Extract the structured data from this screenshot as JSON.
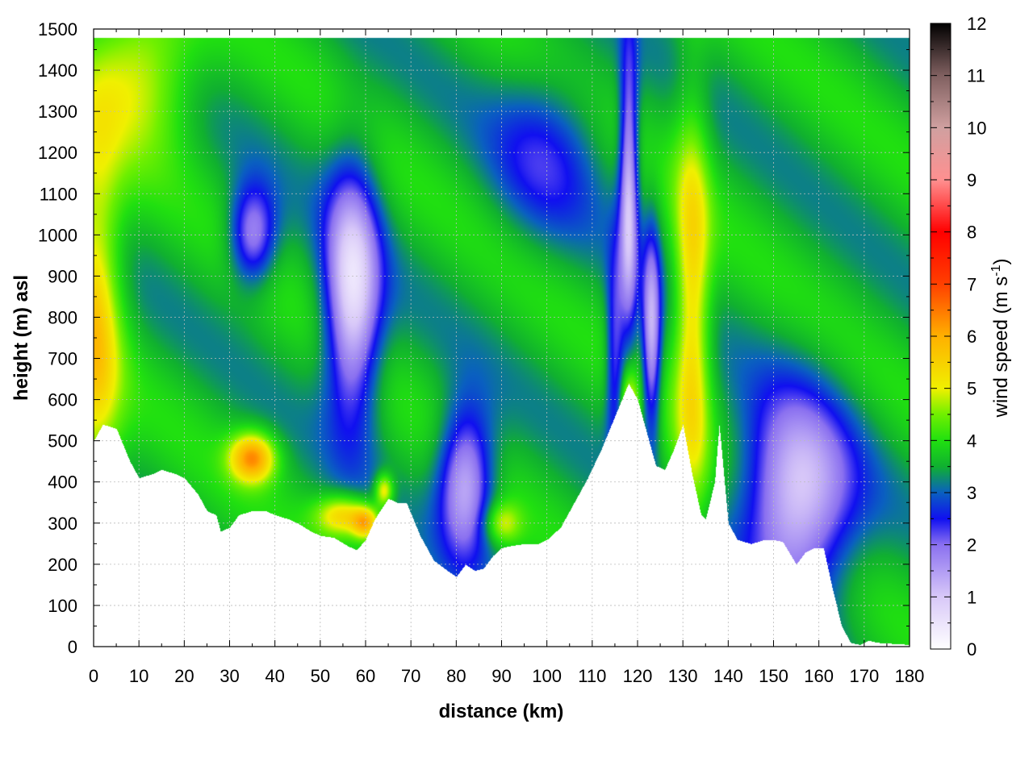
{
  "chart_data": {
    "type": "heatmap",
    "title": "",
    "xlabel": "distance (km)",
    "ylabel": "height (m) asl",
    "colorbar_label": "wind speed (m s",
    "colorbar_label_sup": "-1",
    "colorbar_label_close": ")",
    "xlim": [
      0,
      180
    ],
    "ylim": [
      0,
      1500
    ],
    "clim": [
      0,
      12
    ],
    "x_ticks": [
      0,
      10,
      20,
      30,
      40,
      50,
      60,
      70,
      80,
      90,
      100,
      110,
      120,
      130,
      140,
      150,
      160,
      170,
      180
    ],
    "y_ticks": [
      0,
      100,
      200,
      300,
      400,
      500,
      600,
      700,
      800,
      900,
      1000,
      1100,
      1200,
      1300,
      1400,
      1500
    ],
    "cb_ticks": [
      0,
      1,
      2,
      3,
      4,
      5,
      6,
      7,
      8,
      9,
      10,
      11,
      12
    ],
    "grid": true,
    "colormap": [
      {
        "v": 0.0,
        "color": "#ffffff"
      },
      {
        "v": 1.0,
        "color": "#d8c8f8"
      },
      {
        "v": 2.0,
        "color": "#8a70f0"
      },
      {
        "v": 2.5,
        "color": "#1010f0"
      },
      {
        "v": 3.0,
        "color": "#0a60c0"
      },
      {
        "v": 3.5,
        "color": "#10b030"
      },
      {
        "v": 4.0,
        "color": "#20e010"
      },
      {
        "v": 4.5,
        "color": "#70f000"
      },
      {
        "v": 5.0,
        "color": "#f0f000"
      },
      {
        "v": 6.0,
        "color": "#ffb000"
      },
      {
        "v": 7.0,
        "color": "#ff4000"
      },
      {
        "v": 8.0,
        "color": "#ff0000"
      },
      {
        "v": 9.0,
        "color": "#ff9090"
      },
      {
        "v": 10.0,
        "color": "#d0a0a0"
      },
      {
        "v": 11.0,
        "color": "#806060"
      },
      {
        "v": 12.0,
        "color": "#000000"
      }
    ],
    "terrain_height": [
      [
        0,
        500
      ],
      [
        2,
        540
      ],
      [
        5,
        530
      ],
      [
        8,
        450
      ],
      [
        10,
        410
      ],
      [
        13,
        420
      ],
      [
        15,
        430
      ],
      [
        18,
        420
      ],
      [
        20,
        410
      ],
      [
        23,
        370
      ],
      [
        25,
        330
      ],
      [
        27,
        320
      ],
      [
        28,
        280
      ],
      [
        30,
        290
      ],
      [
        32,
        320
      ],
      [
        35,
        330
      ],
      [
        38,
        330
      ],
      [
        40,
        320
      ],
      [
        43,
        310
      ],
      [
        45,
        300
      ],
      [
        48,
        280
      ],
      [
        50,
        270
      ],
      [
        53,
        265
      ],
      [
        56,
        245
      ],
      [
        58,
        235
      ],
      [
        60,
        260
      ],
      [
        62,
        310
      ],
      [
        65,
        360
      ],
      [
        67,
        350
      ],
      [
        69,
        350
      ],
      [
        72,
        270
      ],
      [
        75,
        210
      ],
      [
        78,
        185
      ],
      [
        80,
        170
      ],
      [
        82,
        200
      ],
      [
        84,
        185
      ],
      [
        86,
        190
      ],
      [
        88,
        220
      ],
      [
        90,
        240
      ],
      [
        92,
        245
      ],
      [
        95,
        250
      ],
      [
        98,
        250
      ],
      [
        100,
        260
      ],
      [
        103,
        290
      ],
      [
        106,
        350
      ],
      [
        109,
        410
      ],
      [
        112,
        480
      ],
      [
        115,
        560
      ],
      [
        118,
        640
      ],
      [
        120,
        600
      ],
      [
        122,
        520
      ],
      [
        124,
        440
      ],
      [
        126,
        430
      ],
      [
        128,
        480
      ],
      [
        130,
        540
      ],
      [
        132,
        420
      ],
      [
        134,
        320
      ],
      [
        135,
        310
      ],
      [
        137,
        400
      ],
      [
        138,
        540
      ],
      [
        140,
        300
      ],
      [
        142,
        260
      ],
      [
        145,
        250
      ],
      [
        148,
        260
      ],
      [
        150,
        260
      ],
      [
        152,
        255
      ],
      [
        155,
        200
      ],
      [
        157,
        230
      ],
      [
        159,
        240
      ],
      [
        161,
        240
      ],
      [
        163,
        140
      ],
      [
        165,
        50
      ],
      [
        167,
        10
      ],
      [
        169,
        5
      ],
      [
        171,
        15
      ],
      [
        173,
        10
      ],
      [
        180,
        5
      ]
    ],
    "wind_features": [
      {
        "x": 0,
        "y": 800,
        "sx": 6,
        "sy": 450,
        "amp": 2.0
      },
      {
        "x": 35,
        "y": 460,
        "sx": 5,
        "sy": 60,
        "amp": 2.6
      },
      {
        "x": 55,
        "y": 320,
        "sx": 6,
        "sy": 50,
        "amp": 1.9
      },
      {
        "x": 60,
        "y": 300,
        "sx": 3,
        "sy": 40,
        "amp": 2.0
      },
      {
        "x": 64,
        "y": 380,
        "sx": 2,
        "sy": 40,
        "amp": 1.8
      },
      {
        "x": 10,
        "y": 1400,
        "sx": 12,
        "sy": 200,
        "amp": 1.5
      },
      {
        "x": 132,
        "y": 800,
        "sx": 4,
        "sy": 500,
        "amp": 1.9
      },
      {
        "x": 118,
        "y": 560,
        "sx": 2,
        "sy": 100,
        "amp": 2.0
      },
      {
        "x": 90,
        "y": 300,
        "sx": 4,
        "sy": 50,
        "amp": 1.2
      },
      {
        "x": 57,
        "y": 850,
        "sx": 6,
        "sy": 300,
        "amp": -3.0
      },
      {
        "x": 35,
        "y": 1000,
        "sx": 5,
        "sy": 120,
        "amp": -2.0
      },
      {
        "x": 82,
        "y": 400,
        "sx": 6,
        "sy": 180,
        "amp": -2.5
      },
      {
        "x": 118,
        "y": 1100,
        "sx": 2,
        "sy": 350,
        "amp": -2.5
      },
      {
        "x": 123,
        "y": 750,
        "sx": 2,
        "sy": 250,
        "amp": -2.3
      },
      {
        "x": 155,
        "y": 350,
        "sx": 12,
        "sy": 250,
        "amp": -2.8
      },
      {
        "x": 115,
        "y": 700,
        "sx": 2,
        "sy": 250,
        "amp": -1.6
      },
      {
        "x": 100,
        "y": 1200,
        "sx": 12,
        "sy": 200,
        "amp": -1.0
      }
    ]
  }
}
